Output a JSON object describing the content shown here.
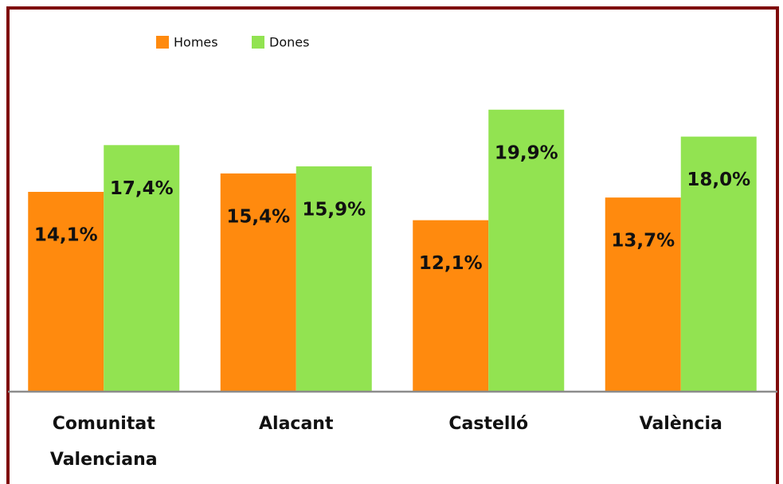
{
  "chart_data": {
    "type": "bar",
    "categories": [
      "Comunitat Valenciana",
      "Alacant",
      "Castelló",
      "València"
    ],
    "series": [
      {
        "name": "Homes",
        "color": "#ff8a0e",
        "values": [
          14.1,
          15.4,
          12.1,
          13.7
        ],
        "value_labels": [
          "14,1%",
          "15,4%",
          "12,1%",
          "13,7%"
        ]
      },
      {
        "name": "Dones",
        "color": "#92e351",
        "values": [
          17.4,
          15.9,
          19.9,
          18.0
        ],
        "value_labels": [
          "17,4%",
          "15,9%",
          "19,9%",
          "18,0%"
        ]
      }
    ]
  }
}
